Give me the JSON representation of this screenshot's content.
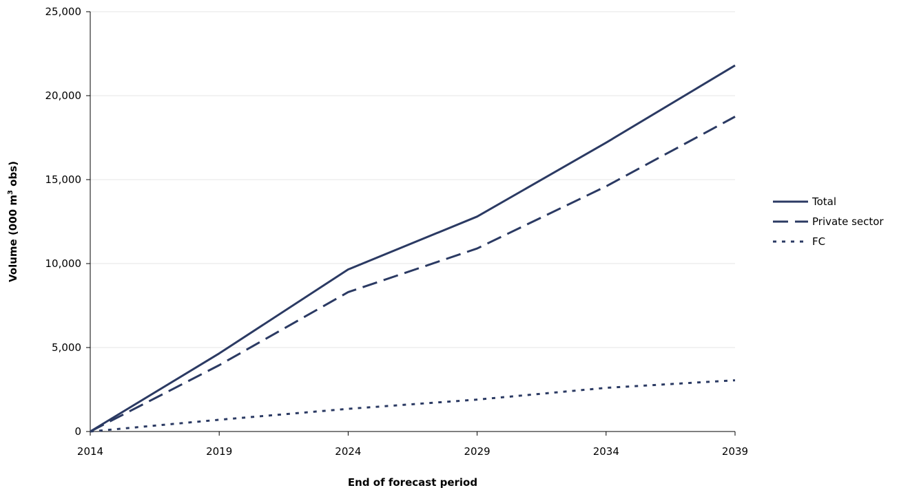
{
  "chart_data": {
    "type": "line",
    "xlabel": "End of forecast period",
    "ylabel_main": "Volume (000 m",
    "ylabel_sup": "3",
    "ylabel_end": " obs)",
    "x": [
      2014,
      2019,
      2024,
      2029,
      2034,
      2039
    ],
    "x_tick_labels": [
      "2014",
      "2019",
      "2024",
      "2029",
      "2034",
      "2039"
    ],
    "y_tick_values": [
      0,
      5000,
      10000,
      15000,
      20000,
      25000
    ],
    "y_tick_labels": [
      "0",
      "5,000",
      "10,000",
      "15,000",
      "20,000",
      "25,000"
    ],
    "ylim": [
      0,
      25000
    ],
    "xlim": [
      2014,
      2039
    ],
    "grid": "horizontal",
    "legend_position": "right",
    "color": "#2b3a63",
    "series": [
      {
        "name": "Total",
        "style": "solid",
        "values": [
          0,
          4650,
          9650,
          12800,
          17200,
          21800
        ]
      },
      {
        "name": "Private sector",
        "style": "dashed",
        "values": [
          0,
          3950,
          8300,
          10900,
          14600,
          18750
        ]
      },
      {
        "name": "FC",
        "style": "dotted",
        "values": [
          0,
          700,
          1350,
          1900,
          2600,
          3050
        ]
      }
    ]
  }
}
